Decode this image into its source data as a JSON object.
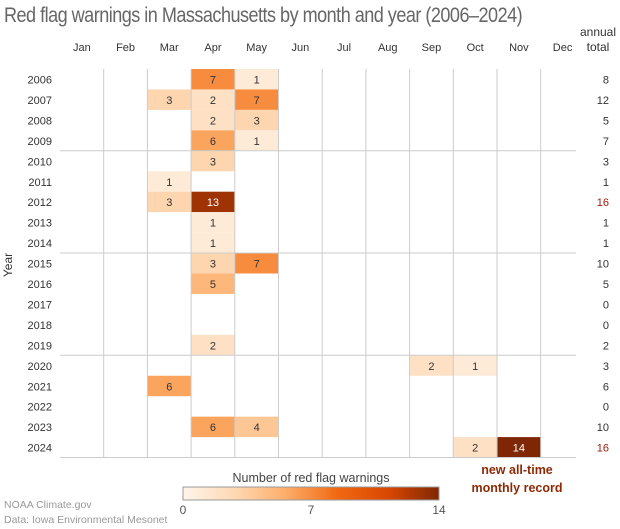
{
  "chart_data": {
    "type": "heatmap",
    "title": "Red flag warnings in Massachusetts by month and year (2006–2024)",
    "xlabel": "",
    "ylabel": "Year",
    "months": [
      "Jan",
      "Feb",
      "Mar",
      "Apr",
      "May",
      "Jun",
      "Jul",
      "Aug",
      "Sep",
      "Oct",
      "Nov",
      "Dec"
    ],
    "years": [
      2006,
      2007,
      2008,
      2009,
      2010,
      2011,
      2012,
      2013,
      2014,
      2015,
      2016,
      2017,
      2018,
      2019,
      2020,
      2021,
      2022,
      2023,
      2024
    ],
    "cells": [
      {
        "year": 2006,
        "month": "Apr",
        "value": 7
      },
      {
        "year": 2006,
        "month": "May",
        "value": 1
      },
      {
        "year": 2007,
        "month": "Mar",
        "value": 3
      },
      {
        "year": 2007,
        "month": "Apr",
        "value": 2
      },
      {
        "year": 2007,
        "month": "May",
        "value": 7
      },
      {
        "year": 2008,
        "month": "Apr",
        "value": 2
      },
      {
        "year": 2008,
        "month": "May",
        "value": 3
      },
      {
        "year": 2009,
        "month": "Apr",
        "value": 6
      },
      {
        "year": 2009,
        "month": "May",
        "value": 1
      },
      {
        "year": 2010,
        "month": "Apr",
        "value": 3
      },
      {
        "year": 2011,
        "month": "Mar",
        "value": 1
      },
      {
        "year": 2012,
        "month": "Mar",
        "value": 3
      },
      {
        "year": 2012,
        "month": "Apr",
        "value": 13
      },
      {
        "year": 2013,
        "month": "Apr",
        "value": 1
      },
      {
        "year": 2014,
        "month": "Apr",
        "value": 1
      },
      {
        "year": 2015,
        "month": "Apr",
        "value": 3
      },
      {
        "year": 2015,
        "month": "May",
        "value": 7
      },
      {
        "year": 2016,
        "month": "Apr",
        "value": 5
      },
      {
        "year": 2019,
        "month": "Apr",
        "value": 2
      },
      {
        "year": 2020,
        "month": "Sep",
        "value": 2
      },
      {
        "year": 2020,
        "month": "Oct",
        "value": 1
      },
      {
        "year": 2021,
        "month": "Mar",
        "value": 6
      },
      {
        "year": 2023,
        "month": "Apr",
        "value": 6
      },
      {
        "year": 2023,
        "month": "May",
        "value": 4
      },
      {
        "year": 2024,
        "month": "Oct",
        "value": 2
      },
      {
        "year": 2024,
        "month": "Nov",
        "value": 14
      }
    ],
    "annual_total_header": [
      "annual",
      "total"
    ],
    "annual_totals": [
      8,
      12,
      5,
      7,
      3,
      1,
      16,
      1,
      1,
      10,
      5,
      0,
      0,
      2,
      3,
      6,
      0,
      10,
      16
    ],
    "highlight_totals": [
      2012,
      2024
    ],
    "highlight_color": "#a01e0a",
    "annotation": [
      "new all-time",
      "monthly record"
    ],
    "annotation_color": "#8b2a05",
    "colorbar": {
      "label": "Number of red flag warnings",
      "min": 0,
      "max": 14,
      "ticks": [
        0,
        7,
        14
      ],
      "colors": [
        "#fff5eb",
        "#fdd9b4",
        "#fdae6b",
        "#f16913",
        "#d94801",
        "#7f2704"
      ]
    }
  },
  "credits": [
    "NOAA Climate.gov",
    "Data: Iowa Environmental Mesonet"
  ]
}
